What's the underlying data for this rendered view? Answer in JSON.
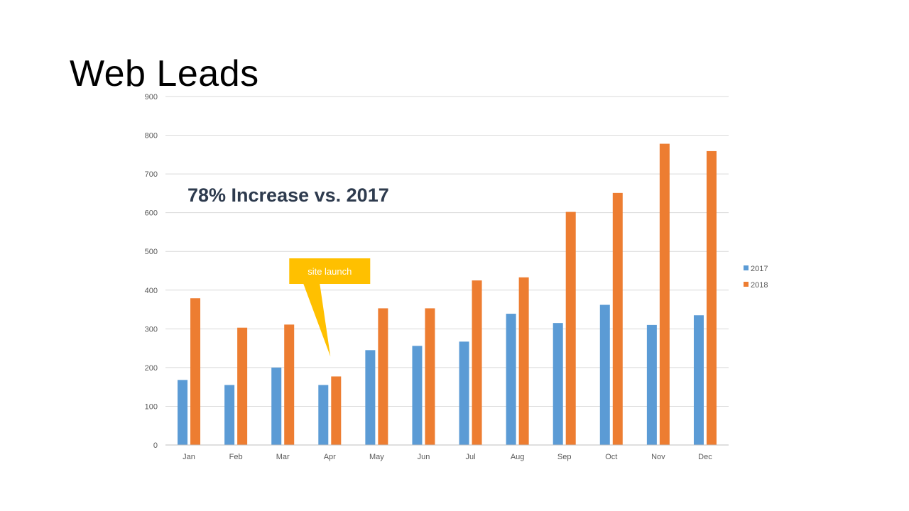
{
  "slide": {
    "title": "Web Leads"
  },
  "colors": {
    "s2017": "#5b9bd5",
    "s2018": "#ed7d31",
    "callout": "#ffc000",
    "grid": "#d9d9d9",
    "headline": "#2e3b4e"
  },
  "chart_data": {
    "type": "bar",
    "title": "Web Leads",
    "categories": [
      "Jan",
      "Feb",
      "Mar",
      "Apr",
      "May",
      "Jun",
      "Jul",
      "Aug",
      "Sep",
      "Oct",
      "Nov",
      "Dec"
    ],
    "series": [
      {
        "name": "2017",
        "values": [
          168,
          155,
          200,
          155,
          245,
          256,
          267,
          339,
          315,
          362,
          310,
          335
        ]
      },
      {
        "name": "2018",
        "values": [
          379,
          303,
          311,
          177,
          353,
          353,
          425,
          433,
          602,
          651,
          778,
          759
        ]
      }
    ],
    "ylim": [
      0,
      900
    ],
    "yticks": [
      0,
      100,
      200,
      300,
      400,
      500,
      600,
      700,
      800,
      900
    ],
    "grid": true,
    "legend": "right",
    "annotations": {
      "headline": "78% Increase vs. 2017",
      "callout": {
        "text": "site launch",
        "category": "Apr",
        "value": 265
      }
    }
  }
}
